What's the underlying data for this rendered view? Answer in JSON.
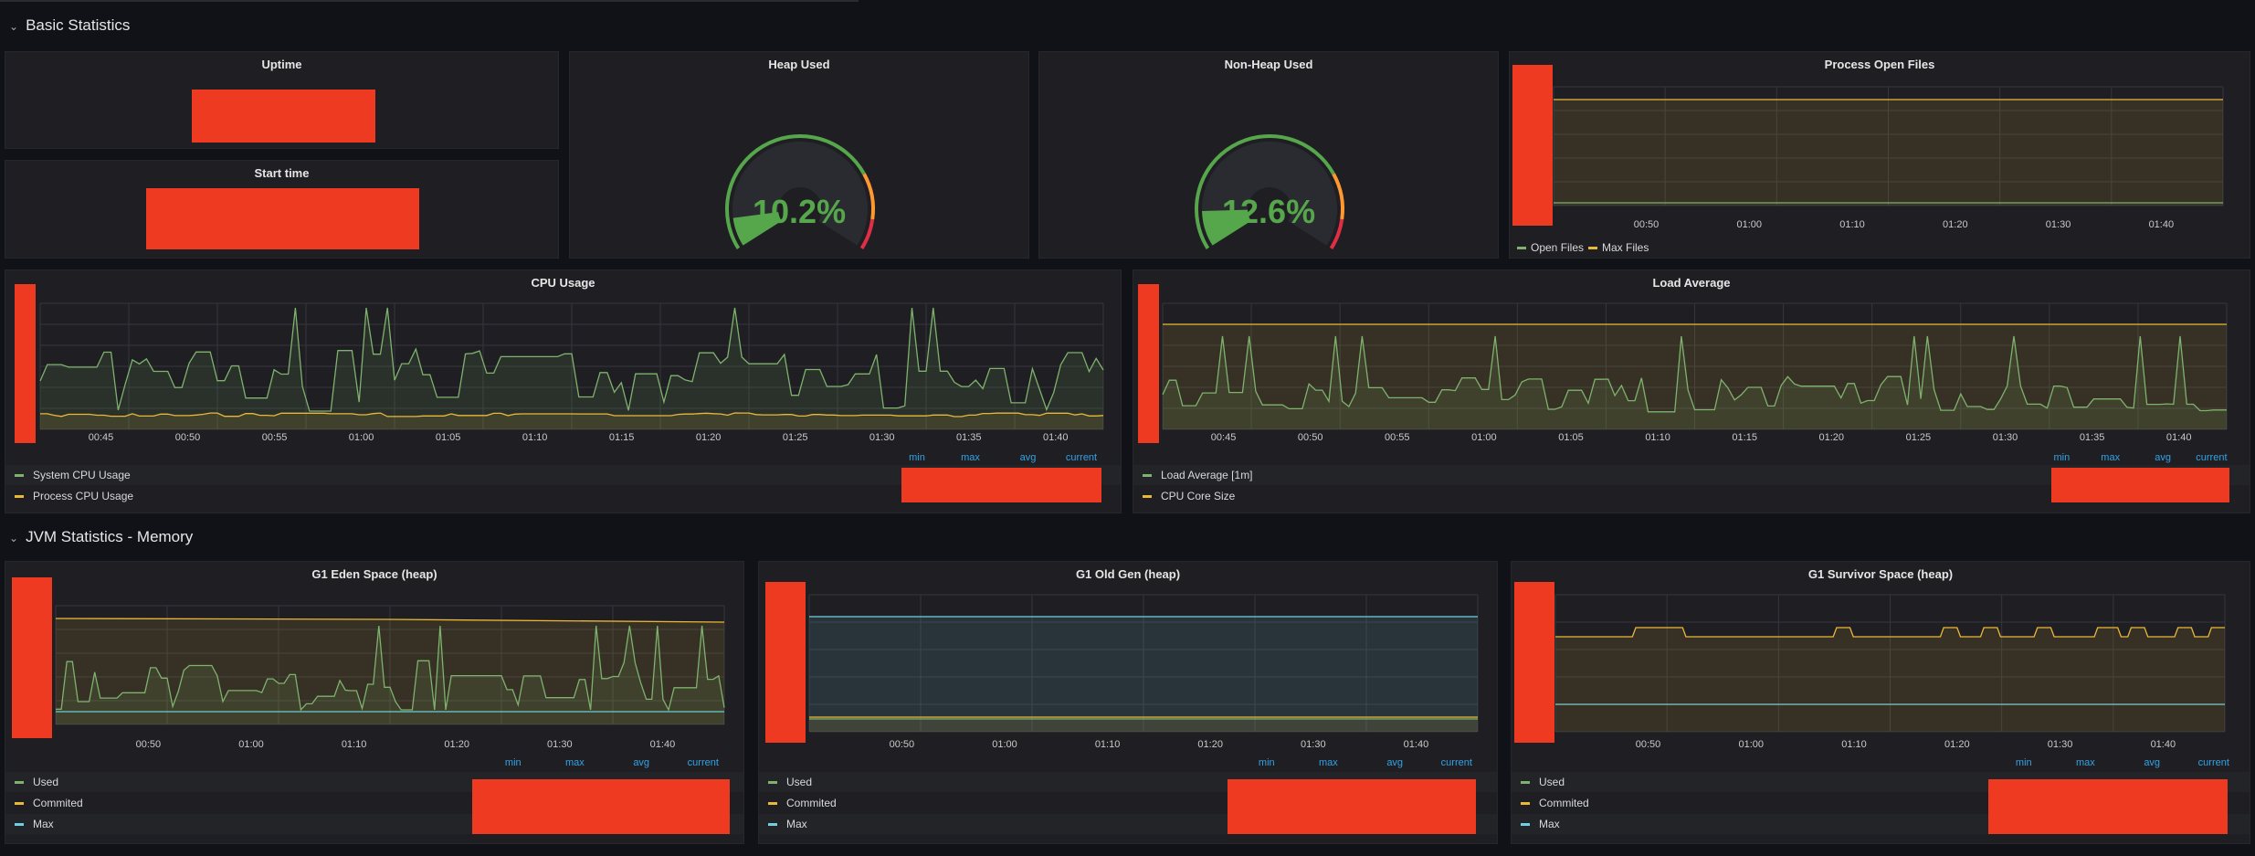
{
  "sections": {
    "basic": "Basic Statistics",
    "jvm": "JVM Statistics - Memory"
  },
  "panels": {
    "uptime": {
      "title": "Uptime"
    },
    "start_time": {
      "title": "Start time"
    },
    "heap": {
      "title": "Heap Used",
      "value": "10.2%",
      "percent": 10.2
    },
    "nonheap": {
      "title": "Non-Heap Used",
      "value": "12.6%",
      "percent": 12.6
    },
    "open_files": {
      "title": "Process Open Files",
      "ticks": [
        "00:50",
        "01:00",
        "01:10",
        "01:20",
        "01:30",
        "01:40"
      ],
      "legend": [
        "Open Files",
        "Max Files"
      ]
    },
    "cpu": {
      "title": "CPU Usage",
      "ticks": [
        "00:45",
        "00:50",
        "00:55",
        "01:00",
        "01:05",
        "01:10",
        "01:15",
        "01:20",
        "01:25",
        "01:30",
        "01:35",
        "01:40"
      ],
      "legend": [
        "System CPU Usage",
        "Process CPU Usage"
      ],
      "legend_headers": [
        "min",
        "max",
        "avg",
        "current"
      ]
    },
    "load": {
      "title": "Load Average",
      "ticks": [
        "00:45",
        "00:50",
        "00:55",
        "01:00",
        "01:05",
        "01:10",
        "01:15",
        "01:20",
        "01:25",
        "01:30",
        "01:35",
        "01:40"
      ],
      "legend": [
        "Load Average [1m]",
        "CPU Core Size"
      ],
      "legend_headers": [
        "min",
        "max",
        "avg",
        "current"
      ]
    },
    "eden": {
      "title": "G1 Eden Space (heap)",
      "ticks": [
        "00:50",
        "01:00",
        "01:10",
        "01:20",
        "01:30",
        "01:40"
      ],
      "legend": [
        "Used",
        "Commited",
        "Max"
      ],
      "legend_headers": [
        "min",
        "max",
        "avg",
        "current"
      ]
    },
    "oldgen": {
      "title": "G1 Old Gen (heap)",
      "ticks": [
        "00:50",
        "01:00",
        "01:10",
        "01:20",
        "01:30",
        "01:40"
      ],
      "legend": [
        "Used",
        "Commited",
        "Max"
      ],
      "legend_headers": [
        "min",
        "max",
        "avg",
        "current"
      ]
    },
    "survivor": {
      "title": "G1 Survivor Space (heap)",
      "ticks": [
        "00:50",
        "01:00",
        "01:10",
        "01:20",
        "01:30",
        "01:40"
      ],
      "legend": [
        "Used",
        "Commited",
        "Max"
      ],
      "legend_headers": [
        "min",
        "max",
        "avg",
        "current"
      ]
    }
  },
  "colors": {
    "green": "#7eb26d",
    "yellow": "#eab839",
    "blue": "#6ed0e0",
    "gauge_green": "#56a64b",
    "gauge_orange": "#ff9830",
    "gauge_red": "#e02f44",
    "redact": "#ee3a20"
  }
}
